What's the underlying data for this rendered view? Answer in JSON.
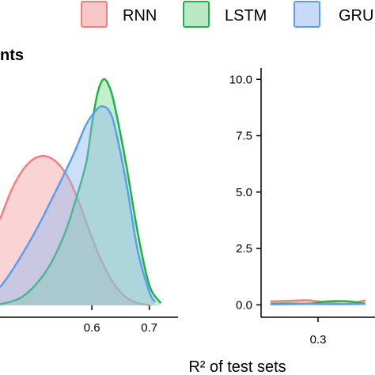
{
  "chart_data": [
    {
      "type": "area",
      "panel": "left",
      "title": "nts",
      "xlabel": "",
      "ylabel": "",
      "x_ticks": [
        0.6,
        0.7
      ],
      "x_tick_labels": [
        "0.6",
        "0.7"
      ],
      "xlim": [
        0.44,
        0.75
      ],
      "ylim": [
        0,
        10.5
      ],
      "series": [
        {
          "name": "RNN",
          "x": [
            0.44,
            0.46,
            0.48,
            0.5,
            0.52,
            0.54,
            0.56,
            0.58,
            0.6,
            0.62,
            0.64,
            0.66,
            0.68,
            0.7
          ],
          "values": [
            3.8,
            5.1,
            6.0,
            6.5,
            6.6,
            6.3,
            5.6,
            4.4,
            3.0,
            1.8,
            0.9,
            0.35,
            0.1,
            0.02
          ]
        },
        {
          "name": "LSTM",
          "x": [
            0.44,
            0.48,
            0.52,
            0.55,
            0.57,
            0.59,
            0.6,
            0.61,
            0.62,
            0.63,
            0.64,
            0.66,
            0.68,
            0.7,
            0.72
          ],
          "values": [
            0.05,
            0.4,
            1.5,
            3.0,
            4.5,
            6.3,
            8.0,
            9.4,
            10.0,
            9.7,
            8.8,
            6.2,
            3.2,
            0.9,
            0.1
          ]
        },
        {
          "name": "GRU",
          "x": [
            0.44,
            0.46,
            0.5,
            0.54,
            0.57,
            0.59,
            0.61,
            0.62,
            0.63,
            0.64,
            0.66,
            0.68,
            0.7,
            0.71
          ],
          "values": [
            0.8,
            1.5,
            3.2,
            5.2,
            6.8,
            8.0,
            8.7,
            8.8,
            8.6,
            7.9,
            5.4,
            2.4,
            0.6,
            0.15
          ]
        }
      ]
    },
    {
      "type": "area",
      "panel": "right",
      "title": "",
      "xlabel": "",
      "ylabel": "",
      "x_ticks": [
        0.3
      ],
      "x_tick_labels": [
        "0.3"
      ],
      "y_ticks": [
        0,
        2.5,
        5,
        7.5,
        10
      ],
      "y_tick_labels": [
        "0.0",
        "2.5",
        "5.0",
        "7.5",
        "10.0"
      ],
      "xlim": [
        0.18,
        0.42
      ],
      "ylim": [
        -0.55,
        10.5
      ],
      "series": [
        {
          "name": "RNN",
          "x": [
            0.2,
            0.24,
            0.28,
            0.32,
            0.36,
            0.4
          ],
          "values": [
            0.15,
            0.18,
            0.2,
            0.1,
            0.05,
            0.2
          ]
        },
        {
          "name": "LSTM",
          "x": [
            0.2,
            0.24,
            0.28,
            0.32,
            0.36,
            0.4
          ],
          "values": [
            0.05,
            0.06,
            0.05,
            0.15,
            0.16,
            0.05
          ]
        },
        {
          "name": "GRU",
          "x": [
            0.2,
            0.24,
            0.28,
            0.32,
            0.36,
            0.4
          ],
          "values": [
            0.02,
            0.03,
            0.04,
            0.03,
            0.03,
            0.04
          ]
        }
      ]
    }
  ],
  "legend": {
    "placement": "top",
    "items": [
      {
        "label": "RNN",
        "line": "#f08080",
        "fill": "#f7c6c6"
      },
      {
        "label": "LSTM",
        "line": "#22b14c",
        "fill": "#b9e8c2"
      },
      {
        "label": "GRU",
        "line": "#5b9ef0",
        "fill": "#c8daf7"
      }
    ]
  },
  "shared_xlabel": "R² of test sets",
  "colors": {
    "RNN": {
      "line": "#f08080",
      "fill": "#f4a0a0",
      "fill_opacity": 0.45
    },
    "LSTM": {
      "line": "#22b14c",
      "fill": "#7fd98c",
      "fill_opacity": 0.45
    },
    "GRU": {
      "line": "#5b9ef0",
      "fill": "#8fb8f2",
      "fill_opacity": 0.45
    }
  }
}
